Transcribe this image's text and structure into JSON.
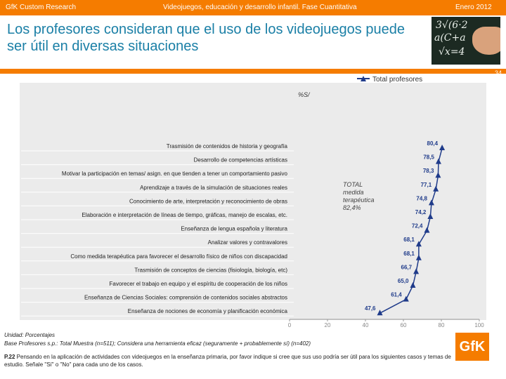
{
  "header": {
    "left": "GfK Custom Research",
    "center": "Videojuegos, educación y desarrollo infantil. Fase Cuantitativa",
    "right": "Enero 2012"
  },
  "title": "Los profesores consideran que el uso de los videojuegos puede ser útil en diversas situaciones",
  "page_number": "34",
  "chart_data": {
    "type": "line",
    "orientation": "horizontal",
    "legend": {
      "label": "Total profesores",
      "placement": "top-right"
    },
    "unit_label": "%S/",
    "categories": [
      "Trasmisión de contenidos de historia y geografía",
      "Desarrollo  de competencias artísticas",
      "Motivar la participación en temas/ asign. en que tienden a tener un comportamiento pasivo",
      "Aprendizaje a través de la simulación de situaciones reales",
      "Conocimiento de arte, interpretación y reconocimiento de obras",
      "Elaboración e interpretación de líneas de tiempo, gráficas, manejo de escalas, etc.",
      "Enseñanza de lengua española y literatura",
      "Analizar valores y contravalores",
      "Como medida terapéutica para favorecer el desarrollo físico de niños con discapacidad",
      "Trasmisión de conceptos de ciencias (fisiología, biología, etc)",
      "Favorecer el trabajo en equipo y el espíritu de cooperación de los niños",
      "Enseñanza de Ciencias Sociales: comprensión de contenidos sociales abstractos",
      "Enseñanza de nociones de economía y planificación económica"
    ],
    "value_labels": [
      "80,4",
      "78,5",
      "78,3",
      "77,1",
      "74,8",
      "74,2",
      "72,4",
      "68,1",
      "68,1",
      "66,7",
      "65,0",
      "61,4",
      "47,6"
    ],
    "series": [
      {
        "name": "Total profesores",
        "values": [
          80.4,
          78.5,
          78.3,
          77.1,
          74.8,
          74.2,
          72.4,
          68.1,
          68.1,
          66.7,
          65.0,
          61.4,
          47.6
        ]
      }
    ],
    "x_ticks": [
      "0",
      "20",
      "40",
      "60",
      "80",
      "100"
    ],
    "xlim": [
      0,
      100
    ],
    "annotation": [
      "TOTAL",
      "medida",
      "terapéutica",
      "82,4%"
    ]
  },
  "colors": {
    "accent": "#f57c00",
    "title": "#1a7fa6",
    "series": "#1f3b8a",
    "plot_bg": "#ebebeb"
  },
  "footer": {
    "unit": "Unidad: Porcentajes",
    "base": "Base Profesores s.p.: Total Muestra (n=511); Considera una herramienta eficaz  (seguramente + probablemente sí) (n=402)",
    "question_id": "P.22",
    "question_text": " Pensando en la aplicación de actividades con videojuegos en la enseñanza primaria,  por favor indique si cree que sus uso podría ser útil para los siguientes casos y temas de estudio.  Señale \"Sí\" o \"No\" para cada uno de los casos."
  },
  "logo": "GfK"
}
